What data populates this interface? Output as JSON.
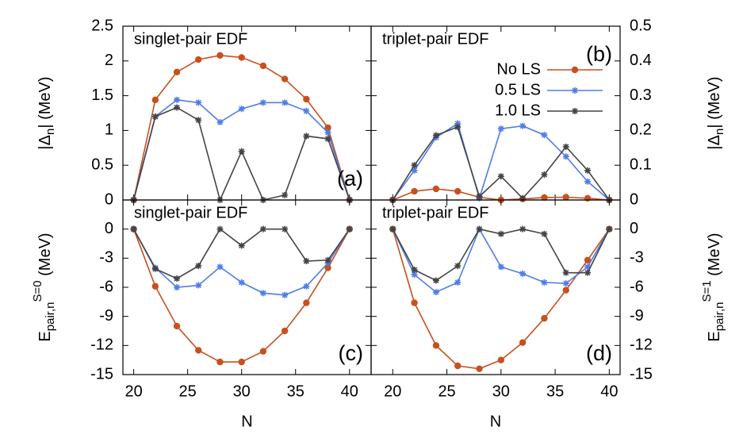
{
  "chart_data": [
    {
      "type": "line",
      "title": "singlet-pair EDF",
      "panel_label": "(a)",
      "y_label": [
        {
          "text": "|Δ"
        },
        {
          "text": "n",
          "shift": "sub"
        },
        {
          "text": "| (MeV)"
        }
      ],
      "x": [
        20,
        22,
        24,
        26,
        28,
        30,
        32,
        34,
        36,
        38,
        40
      ],
      "xlim": [
        19,
        42
      ],
      "xticks": [
        20,
        25,
        30,
        35,
        40
      ],
      "show_xtick_labels": false,
      "ylim": [
        0,
        2.5
      ],
      "yticks": [
        0,
        0.5,
        1,
        1.5,
        2,
        2.5
      ],
      "yaxis_side": "left",
      "series": [
        {
          "color": "#c8501e",
          "marker": "circle",
          "values": [
            0,
            1.44,
            1.84,
            2.02,
            2.08,
            2.05,
            1.93,
            1.74,
            1.45,
            1.04,
            0
          ]
        },
        {
          "color": "#4f7de8",
          "marker": "star",
          "values": [
            0,
            1.2,
            1.44,
            1.4,
            1.12,
            1.31,
            1.4,
            1.4,
            1.28,
            0.97,
            0
          ]
        },
        {
          "color": "#444444",
          "marker": "star",
          "values": [
            0,
            1.2,
            1.33,
            1.15,
            0,
            0.7,
            0,
            0.07,
            0.92,
            0.88,
            0
          ]
        }
      ]
    },
    {
      "type": "line",
      "title": "triplet-pair EDF",
      "panel_label": "(b)",
      "y_label": [
        {
          "text": "|Δ"
        },
        {
          "text": "n",
          "shift": "sub"
        },
        {
          "text": "| (MeV)"
        }
      ],
      "x": [
        20,
        22,
        24,
        26,
        28,
        30,
        32,
        34,
        36,
        38,
        40
      ],
      "xlim": [
        18,
        41
      ],
      "xticks": [
        20,
        25,
        30,
        35,
        40
      ],
      "show_xtick_labels": false,
      "ylim": [
        0,
        0.5
      ],
      "yticks": [
        0,
        0.1,
        0.2,
        0.3,
        0.4,
        0.5
      ],
      "yaxis_side": "right",
      "legend": "top-right",
      "series": [
        {
          "name": "No LS",
          "color": "#c8501e",
          "marker": "circle",
          "values": [
            0,
            0.025,
            0.032,
            0.025,
            0.008,
            0,
            0.003,
            0.007,
            0.008,
            0.005,
            0
          ]
        },
        {
          "name": "0.5 LS",
          "color": "#4f7de8",
          "marker": "star",
          "values": [
            0,
            0.085,
            0.18,
            0.22,
            0.005,
            0.205,
            0.213,
            0.187,
            0.125,
            0.053,
            0
          ]
        },
        {
          "name": "1.0 LS",
          "color": "#444444",
          "marker": "star",
          "values": [
            0,
            0.1,
            0.186,
            0.21,
            0.01,
            0.068,
            0.005,
            0.073,
            0.153,
            0.085,
            0
          ]
        }
      ]
    },
    {
      "type": "line",
      "title": "singlet-pair EDF",
      "panel_label": "(c)",
      "y_label": [
        {
          "text": "E"
        },
        {
          "text": "pair,n",
          "shift": "sub"
        },
        {
          "text": "S=0",
          "shift": "sup"
        },
        {
          "text": " (MeV)"
        }
      ],
      "x_label": "N",
      "x": [
        20,
        22,
        24,
        26,
        28,
        30,
        32,
        34,
        36,
        38,
        40
      ],
      "xlim": [
        19,
        42
      ],
      "xticks": [
        20,
        25,
        30,
        35,
        40
      ],
      "show_xtick_labels": true,
      "ylim": [
        -15,
        3
      ],
      "yticks": [
        0,
        -3,
        -6,
        -9,
        -12,
        -15
      ],
      "yaxis_side": "left",
      "series": [
        {
          "color": "#c8501e",
          "marker": "circle",
          "values": [
            0,
            -5.9,
            -10.0,
            -12.5,
            -13.7,
            -13.7,
            -12.6,
            -10.5,
            -7.6,
            -4.0,
            0
          ]
        },
        {
          "color": "#4f7de8",
          "marker": "star",
          "values": [
            0,
            -4.0,
            -6.0,
            -5.8,
            -3.9,
            -5.5,
            -6.6,
            -6.8,
            -5.9,
            -3.5,
            0
          ]
        },
        {
          "color": "#444444",
          "marker": "star",
          "values": [
            0,
            -4.1,
            -5.1,
            -3.8,
            0,
            -1.7,
            0,
            0,
            -3.3,
            -3.2,
            0
          ]
        }
      ]
    },
    {
      "type": "line",
      "title": "triplet-pair EDF",
      "panel_label": "(d)",
      "y_label": [
        {
          "text": "E"
        },
        {
          "text": "pair,n",
          "shift": "sub"
        },
        {
          "text": "S=1",
          "shift": "sup"
        },
        {
          "text": " (MeV)"
        }
      ],
      "x_label": "N",
      "x": [
        20,
        22,
        24,
        26,
        28,
        30,
        32,
        34,
        36,
        38,
        40
      ],
      "xlim": [
        18,
        41
      ],
      "xticks": [
        20,
        25,
        30,
        35,
        40
      ],
      "show_xtick_labels": true,
      "ylim": [
        -15,
        3
      ],
      "yticks": [
        0,
        -3,
        -6,
        -9,
        -12,
        -15
      ],
      "yaxis_side": "right",
      "series": [
        {
          "color": "#c8501e",
          "marker": "circle",
          "values": [
            0,
            -7.6,
            -12.0,
            -14.1,
            -14.4,
            -13.5,
            -11.7,
            -9.2,
            -6.3,
            -3.2,
            0
          ]
        },
        {
          "color": "#4f7de8",
          "marker": "star",
          "values": [
            0,
            -4.7,
            -6.5,
            -5.5,
            0,
            -3.9,
            -4.6,
            -5.5,
            -5.6,
            -3.9,
            0
          ]
        },
        {
          "color": "#444444",
          "marker": "star",
          "values": [
            0,
            -4.2,
            -5.3,
            -3.8,
            0,
            -0.5,
            0,
            -0.5,
            -4.5,
            -4.5,
            0
          ]
        }
      ]
    }
  ]
}
